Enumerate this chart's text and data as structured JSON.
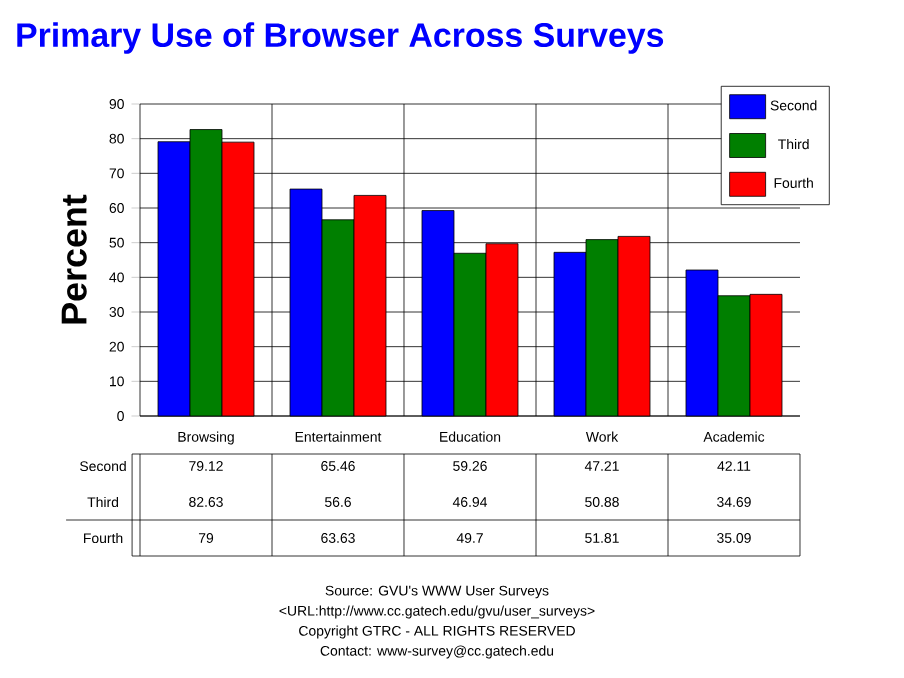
{
  "chart_data": {
    "type": "bar",
    "title": "Primary Use of Browser Across Surveys",
    "ylabel": "Percent",
    "categories": [
      "Browsing",
      "Entertainment",
      "Education",
      "Work",
      "Academic"
    ],
    "series": [
      {
        "name": "Second",
        "color": "#0000ff",
        "values": [
          79.12,
          65.46,
          59.26,
          47.21,
          42.11
        ]
      },
      {
        "name": "Third",
        "color": "#007f00",
        "values": [
          82.63,
          56.6,
          46.94,
          50.88,
          34.69
        ]
      },
      {
        "name": "Fourth",
        "color": "#ff0000",
        "values": [
          79,
          63.63,
          49.7,
          51.81,
          35.09
        ]
      }
    ],
    "ylim": [
      0,
      90
    ],
    "yticks": [
      0,
      10,
      20,
      30,
      40,
      50,
      60,
      70,
      80,
      90
    ],
    "grid": true,
    "legend": "top right",
    "data_labels": true,
    "annotations": [
      "Source: GVU's WWW User Surveys",
      "<URL:http://www.cc.gatech.edu/gvu/user_surveys>",
      "Copyright GTRC -  ALL RIGHTS RESERVED",
      "Contact: www-survey@cc.gatech.edu"
    ]
  }
}
